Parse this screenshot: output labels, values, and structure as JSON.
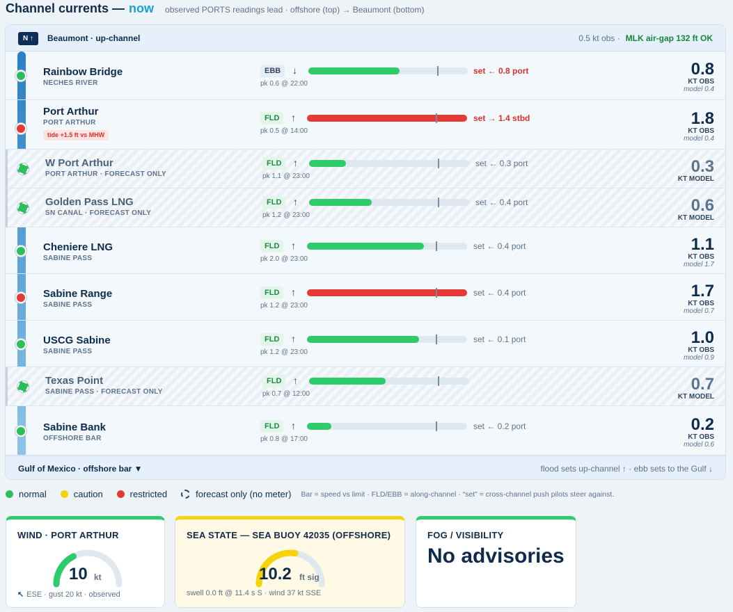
{
  "header": {
    "title": "Channel currents —",
    "title_accent": "now",
    "subtitle": "observed PORTS readings lead · offshore (top) → Beaumont (bottom)"
  },
  "panel": {
    "north_badge": "N ↑",
    "title": "Beaumont · up-channel",
    "obs_note": "0.5 kt obs ·",
    "airgap_status": "MLK air-gap 132 ft OK",
    "footer_left": "Gulf of Mexico · offshore bar ▼",
    "footer_right": "flood sets up-channel ↑ · ebb sets to the Gulf ↓"
  },
  "stations": [
    {
      "name": "Rainbow Bridge",
      "sub": "NECHES RIVER",
      "status": "normal",
      "forecast_only": false,
      "direction": "EBB",
      "arrow": "↓",
      "speed_fraction": 0.57,
      "bar_color": "green",
      "peak": "pk 0.6 @ 22:00",
      "set": "set ← 0.8 port",
      "set_warn": true,
      "speed": "0.8",
      "unit": "KT OBS",
      "model": "model 0.4",
      "tide": ""
    },
    {
      "name": "Port Arthur",
      "sub": "PORT ARTHUR",
      "status": "restricted",
      "forecast_only": false,
      "direction": "FLD",
      "arrow": "↑",
      "speed_fraction": 1.0,
      "bar_color": "red",
      "peak": "pk 0.5 @ 14:00",
      "set": "set → 1.4 stbd",
      "set_warn": true,
      "speed": "1.8",
      "unit": "KT OBS",
      "model": "model 0.4",
      "tide": "tide +1.5 ft vs MHW"
    },
    {
      "name": "W Port Arthur",
      "sub": "PORT ARTHUR · FORECAST ONLY",
      "status": "forecast",
      "forecast_only": true,
      "direction": "FLD",
      "arrow": "↑",
      "speed_fraction": 0.23,
      "bar_color": "green",
      "peak": "pk 1.1 @ 23:00",
      "set": "set ← 0.3 port",
      "set_warn": false,
      "speed": "0.3",
      "unit": "KT MODEL",
      "model": "",
      "tide": ""
    },
    {
      "name": "Golden Pass LNG",
      "sub": "SN CANAL · FORECAST ONLY",
      "status": "forecast",
      "forecast_only": true,
      "direction": "FLD",
      "arrow": "↑",
      "speed_fraction": 0.39,
      "bar_color": "green",
      "peak": "pk 1.2 @ 23:00",
      "set": "set ← 0.4 port",
      "set_warn": false,
      "speed": "0.6",
      "unit": "KT MODEL",
      "model": "",
      "tide": ""
    },
    {
      "name": "Cheniere LNG",
      "sub": "SABINE PASS",
      "status": "normal",
      "forecast_only": false,
      "direction": "FLD",
      "arrow": "↑",
      "speed_fraction": 0.73,
      "bar_color": "green",
      "peak": "pk 2.0 @ 23:00",
      "set": "set ← 0.4 port",
      "set_warn": false,
      "speed": "1.1",
      "unit": "KT OBS",
      "model": "model 1.7",
      "tide": ""
    },
    {
      "name": "Sabine Range",
      "sub": "SABINE PASS",
      "status": "restricted",
      "forecast_only": false,
      "direction": "FLD",
      "arrow": "↑",
      "speed_fraction": 1.0,
      "bar_color": "red",
      "peak": "pk 1.2 @ 23:00",
      "set": "set ← 0.4 port",
      "set_warn": false,
      "speed": "1.7",
      "unit": "KT OBS",
      "model": "model 0.7",
      "tide": ""
    },
    {
      "name": "USCG Sabine",
      "sub": "SABINE PASS",
      "status": "normal",
      "forecast_only": false,
      "direction": "FLD",
      "arrow": "↑",
      "speed_fraction": 0.7,
      "bar_color": "green",
      "peak": "pk 1.2 @ 23:00",
      "set": "set ← 0.1 port",
      "set_warn": false,
      "speed": "1.0",
      "unit": "KT OBS",
      "model": "model 0.9",
      "tide": ""
    },
    {
      "name": "Texas Point",
      "sub": "SABINE PASS · FORECAST ONLY",
      "status": "forecast",
      "forecast_only": true,
      "direction": "FLD",
      "arrow": "↑",
      "speed_fraction": 0.48,
      "bar_color": "green",
      "peak": "pk 0.7 @ 12:00",
      "set": "",
      "set_warn": false,
      "speed": "0.7",
      "unit": "KT MODEL",
      "model": "",
      "tide": ""
    },
    {
      "name": "Sabine Bank",
      "sub": "OFFSHORE BAR",
      "status": "normal",
      "forecast_only": false,
      "direction": "FLD",
      "arrow": "↑",
      "speed_fraction": 0.15,
      "bar_color": "green",
      "peak": "pk 0.8 @ 17:00",
      "set": "set ← 0.2 port",
      "set_warn": false,
      "speed": "0.2",
      "unit": "KT OBS",
      "model": "model 0.6",
      "tide": ""
    }
  ],
  "legend": {
    "normal": "normal",
    "caution": "caution",
    "restricted": "restricted",
    "forecast": "forecast only (no meter)",
    "note": "Bar = speed vs limit · FLD/EBB = along-channel · “set” = cross-channel push pilots steer against.",
    "colors": {
      "normal": "#2bbf5c",
      "caution": "#f5d20a",
      "restricted": "#e53935"
    }
  },
  "cards": {
    "wind": {
      "title": "WIND · PORT ARTHUR",
      "value": "10",
      "unit": "kt",
      "gauge_fraction": 0.35,
      "footer_icon": "↖",
      "footer": "ESE · gust 20 kt · observed"
    },
    "sea": {
      "title": "SEA STATE — SEA BUOY 42035 (OFFSHORE)",
      "value": "10.2",
      "unit": "ft sig",
      "gauge_fraction": 0.55,
      "footer": "swell 0.0 ft @ 11.4 s S · wind 37 kt SSE"
    },
    "fog": {
      "title": "FOG / VISIBILITY",
      "value": "No advisories"
    }
  }
}
